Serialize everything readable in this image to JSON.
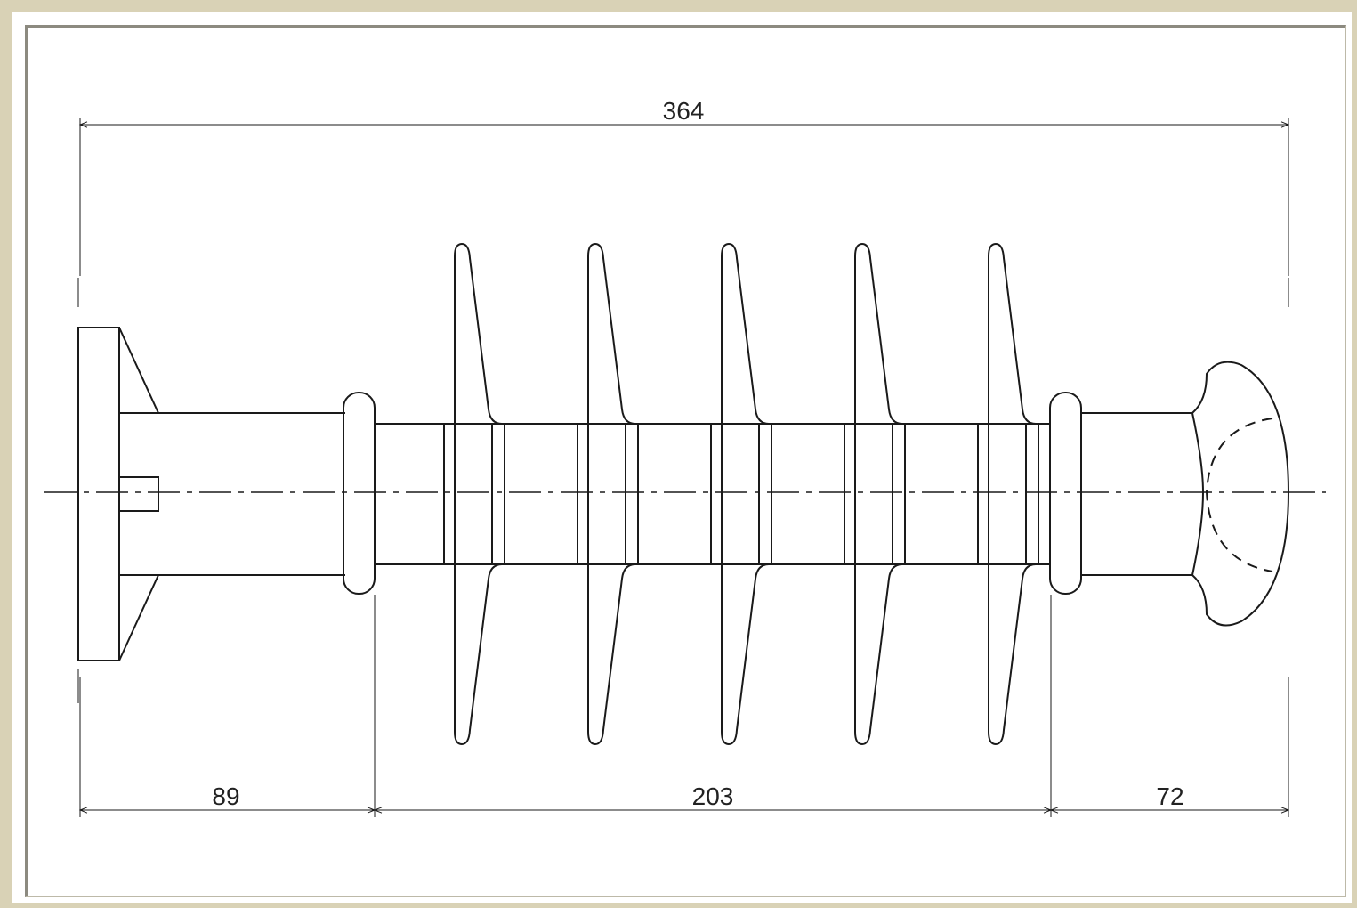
{
  "drawing": {
    "dimensions": {
      "overall": "364",
      "left_segment": "89",
      "middle_segment": "203",
      "right_segment": "72"
    },
    "shed_count": 5
  }
}
